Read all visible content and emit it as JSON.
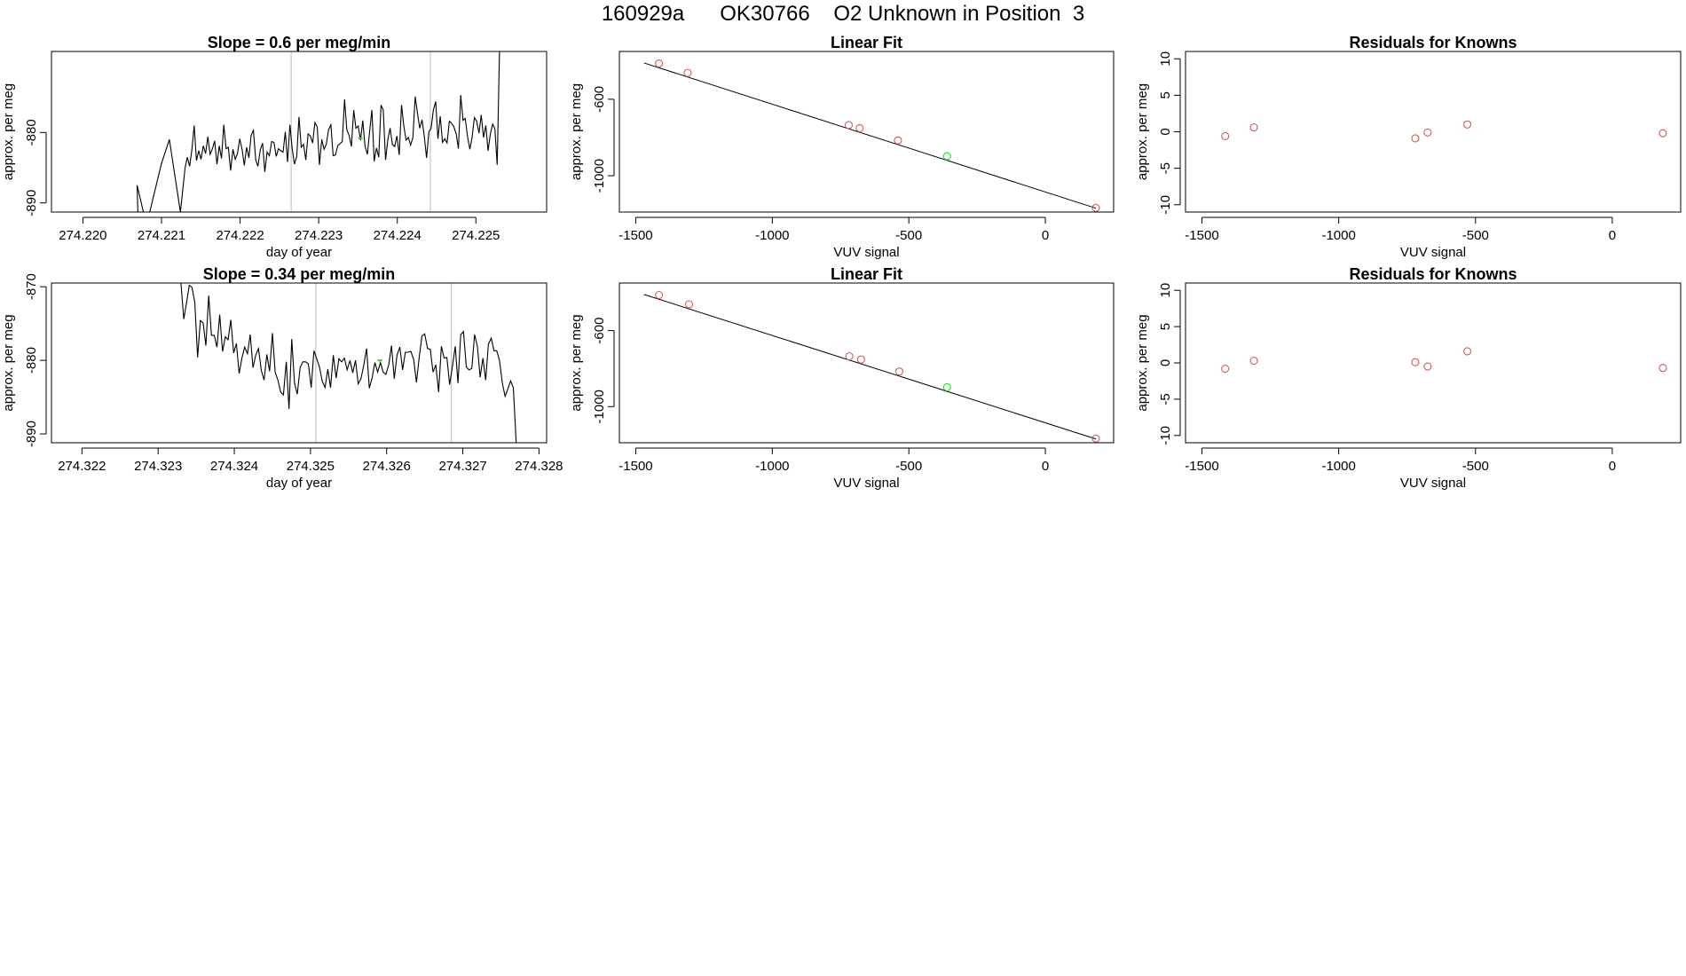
{
  "title": "160929a      OK30766    O2 Unknown in Position  3",
  "colors": {
    "trace": "#000000",
    "known": "#cd5c5c",
    "unknown": "#22dd22",
    "guide": "#bbbbbb",
    "fit": "#000000"
  },
  "chart_data": [
    {
      "type": "line",
      "title": "Slope =  0.6  per meg/min",
      "xlabel": "day of year",
      "ylabel": "approx. per meg",
      "xlim": [
        274.2196,
        274.2259
      ],
      "ylim": [
        -891.3,
        -868.5
      ],
      "xticks": [
        274.22,
        274.221,
        274.222,
        274.223,
        274.224,
        274.225
      ],
      "xtick_labels": [
        "274.220",
        "274.221",
        "274.222",
        "274.223",
        "274.224",
        "274.225"
      ],
      "yticks": [
        -890,
        -880
      ],
      "ytick_labels": [
        "-890",
        "-880"
      ],
      "vlines": [
        274.22265,
        274.22442
      ],
      "segments": [
        [
          274.2196,
          -891.3
        ],
        [
          274.2207,
          -891.3
        ],
        [
          274.22069,
          -887.5
        ],
        [
          274.22077,
          -891.3
        ],
        [
          274.22085,
          -891.3
        ],
        [
          274.221,
          -884.4
        ],
        [
          274.2211,
          -881
        ],
        [
          274.22124,
          -891.3
        ],
        [
          274.2213,
          -885
        ]
      ],
      "series_start": 274.2213,
      "series_end": 274.2253,
      "series_seed": 11,
      "series_base": -881.5,
      "series_amp": 6.5,
      "series_values": [
        -885,
        -883.5,
        -884.8,
        -882.4,
        -879,
        -884,
        -882.6,
        -883.8,
        -881.9,
        -883.0,
        -880.6,
        -883.1,
        -882.3,
        -881.2,
        -884.5,
        -881.9,
        -883.7,
        -878.9,
        -882.3,
        -882.1,
        -885.4,
        -882.4,
        -883.8,
        -883.0,
        -880.9,
        -882.4,
        -884.7,
        -882.1,
        -883.6,
        -880.4,
        -879.7,
        -883.9,
        -884.8,
        -882.5,
        -881.5,
        -885.6,
        -882.8,
        -883.3,
        -881.3,
        -881.4,
        -883.4,
        -882.3,
        -882.6,
        -882.8,
        -879.9,
        -884.2,
        -878.9,
        -882.2,
        -884.5,
        -883.4,
        -877.8,
        -882.1,
        -881.7,
        -883.9,
        -880.2,
        -880.5,
        -881.5,
        -878.6,
        -879.2,
        -884.6,
        -881.0,
        -882.4,
        -881.7,
        -879.6,
        -878.9,
        -883.3,
        -883.2,
        -881.9,
        -881.6,
        -881.3,
        -875.3,
        -879.6,
        -880.4,
        -882.0,
        -876.8,
        -879.4,
        -879.1,
        -881.1,
        -878.3,
        -882.0,
        -883.1,
        -879.9,
        -876.8,
        -884.1,
        -882.2,
        -883.5,
        -876.1,
        -876.8,
        -883.9,
        -881.0,
        -879.4,
        -881.7,
        -882.0,
        -880.5,
        -883.2,
        -876.1,
        -879.0,
        -881.1,
        -880.7,
        -881.8,
        -880.7,
        -874.9,
        -877.2,
        -879.4,
        -878.2,
        -880.5,
        -883.6,
        -879.9,
        -879.4,
        -876.8,
        -875.6,
        -880.9,
        -877.7,
        -881.4,
        -880.9,
        -881.5,
        -878.4,
        -878.7,
        -879.2,
        -880.2,
        -882.3,
        -874.7,
        -878.3,
        -878.0,
        -880.6,
        -882.4,
        -880.7,
        -877.9,
        -878.4,
        -880.1,
        -877.5,
        -880.7,
        -879.0,
        -882.6,
        -880.2,
        -878.8,
        -879.5,
        -884.6,
        -868.5
      ],
      "green_x": 274.22352,
      "green_y": -880.8,
      "green_highlight": [
        274.2235,
        274.22356
      ]
    },
    {
      "type": "scatter",
      "title": "Linear Fit",
      "xlabel": "VUV signal",
      "ylabel": "approx. per meg",
      "xlim": [
        -1560,
        250
      ],
      "ylim": [
        -1190,
        -350
      ],
      "xticks": [
        -1500,
        -1000,
        -500,
        0
      ],
      "xtick_labels": [
        "-1500",
        "-1000",
        "-500",
        "0"
      ],
      "yticks": [
        -1000,
        -600
      ],
      "ytick_labels": [
        "-1000",
        "-600"
      ],
      "fit_line": [
        [
          -1470,
          -410
        ],
        [
          185,
          -1170
        ]
      ],
      "points": [
        [
          -1415,
          -413
        ],
        [
          -1310,
          -462
        ],
        [
          -720,
          -735
        ],
        [
          -680,
          -751
        ],
        [
          -540,
          -815
        ],
        [
          185,
          -1168
        ]
      ],
      "unknown": [
        [
          -360,
          -898
        ]
      ]
    },
    {
      "type": "scatter",
      "title": "Residuals for Knowns",
      "xlabel": "VUV signal",
      "ylabel": "approx. per meg",
      "xlim": [
        -1560,
        250
      ],
      "ylim": [
        -11,
        11
      ],
      "xticks": [
        -1500,
        -1000,
        -500,
        0
      ],
      "xtick_labels": [
        "-1500",
        "-1000",
        "-500",
        "0"
      ],
      "yticks": [
        -10,
        -5,
        0,
        5,
        10
      ],
      "ytick_labels": [
        "-10",
        "-5",
        "0",
        "5",
        "10"
      ],
      "points": [
        [
          -1415,
          -0.6
        ],
        [
          -1310,
          0.6
        ],
        [
          -720,
          -0.9
        ],
        [
          -675,
          -0.1
        ],
        [
          -530,
          1.0
        ],
        [
          185,
          -0.2
        ]
      ]
    },
    {
      "type": "line",
      "title": "Slope =  0.34  per meg/min",
      "xlabel": "day of year",
      "ylabel": "approx. per meg",
      "xlim": [
        274.3216,
        274.3281
      ],
      "ylim": [
        -891.2,
        -869.5
      ],
      "xticks": [
        274.322,
        274.323,
        274.324,
        274.325,
        274.326,
        274.327,
        274.328
      ],
      "xtick_labels": [
        "274.322",
        "274.323",
        "274.324",
        "274.325",
        "274.326",
        "274.327",
        "274.328"
      ],
      "yticks": [
        -890,
        -880,
        -870
      ],
      "ytick_labels": [
        "-890",
        "-880",
        "-870"
      ],
      "vlines": [
        274.32507,
        274.32685
      ],
      "segments": [
        [
          274.32313,
          -869.5
        ]
      ],
      "series_start": 274.3233,
      "series_end": 274.3277,
      "series_seed": 23,
      "series_base": -880.3,
      "series_amp": 6.0,
      "series_values": [
        -869.5,
        -874.4,
        -872.2,
        -869.8,
        -870.1,
        -872.1,
        -879.6,
        -874.6,
        -874.9,
        -878.0,
        -871.2,
        -876.6,
        -876.6,
        -878.2,
        -873.8,
        -878.8,
        -876.8,
        -877.2,
        -874.5,
        -879.0,
        -877.7,
        -881.8,
        -879.7,
        -878.2,
        -879.1,
        -876.5,
        -881.0,
        -879.3,
        -878.4,
        -881.4,
        -882.7,
        -879.2,
        -881.5,
        -876.3,
        -881.6,
        -882.7,
        -884.3,
        -884.7,
        -880.2,
        -886.6,
        -877.1,
        -883.1,
        -884.6,
        -881.0,
        -880.2,
        -880.2,
        -880.5,
        -883.7,
        -878.7,
        -879.8,
        -880.9,
        -882.8,
        -883.7,
        -881.2,
        -883.7,
        -879.3,
        -882.4,
        -879.8,
        -880.2,
        -879.7,
        -881.3,
        -880.0,
        -881.7,
        -880.0,
        -883.2,
        -882.5,
        -880.6,
        -878.4,
        -883.8,
        -882.4,
        -880.3,
        -881.6,
        -880.3,
        -881.6,
        -881.9,
        -880.6,
        -878.0,
        -882.5,
        -879.3,
        -878.2,
        -881.3,
        -878.9,
        -878.9,
        -878.8,
        -879.9,
        -883.0,
        -879.6,
        -876.7,
        -876.4,
        -878.4,
        -878.5,
        -881.6,
        -880.6,
        -884.3,
        -878.1,
        -879.7,
        -879.6,
        -883.3,
        -880.8,
        -878.1,
        -883.1,
        -876.5,
        -876.1,
        -880.9,
        -881.3,
        -881.1,
        -876.5,
        -878.1,
        -882.3,
        -879.7,
        -882.7,
        -877.8,
        -877.0,
        -878.7,
        -878.7,
        -880.0,
        -883.1,
        -884.9,
        -883.9,
        -882.8,
        -883.7,
        -891.2
      ],
      "green_x": 274.3259,
      "green_y": -880.0,
      "green_highlight": [
        274.32588,
        274.32594
      ]
    },
    {
      "type": "scatter",
      "title": "Linear Fit",
      "xlabel": "VUV signal",
      "ylabel": "approx. per meg",
      "xlim": [
        -1560,
        250
      ],
      "ylim": [
        -1190,
        -350
      ],
      "xticks": [
        -1500,
        -1000,
        -500,
        0
      ],
      "xtick_labels": [
        "-1500",
        "-1000",
        "-500",
        "0"
      ],
      "yticks": [
        -1000,
        -600
      ],
      "ytick_labels": [
        "-1000",
        "-600"
      ],
      "fit_line": [
        [
          -1470,
          -410
        ],
        [
          185,
          -1170
        ]
      ],
      "points": [
        [
          -1415,
          -413
        ],
        [
          -1305,
          -462
        ],
        [
          -718,
          -735
        ],
        [
          -675,
          -752
        ],
        [
          -535,
          -815
        ],
        [
          185,
          -1168
        ]
      ],
      "unknown": [
        [
          -360,
          -898
        ]
      ]
    },
    {
      "type": "scatter",
      "title": "Residuals for Knowns",
      "xlabel": "VUV signal",
      "ylabel": "approx. per meg",
      "xlim": [
        -1560,
        250
      ],
      "ylim": [
        -11,
        11
      ],
      "xticks": [
        -1500,
        -1000,
        -500,
        0
      ],
      "xtick_labels": [
        "-1500",
        "-1000",
        "-500",
        "0"
      ],
      "yticks": [
        -10,
        -5,
        0,
        5,
        10
      ],
      "ytick_labels": [
        "-10",
        "-5",
        "0",
        "5",
        "10"
      ],
      "points": [
        [
          -1415,
          -0.8
        ],
        [
          -1310,
          0.3
        ],
        [
          -720,
          0.1
        ],
        [
          -675,
          -0.5
        ],
        [
          -530,
          1.6
        ],
        [
          185,
          -0.7
        ]
      ]
    }
  ]
}
